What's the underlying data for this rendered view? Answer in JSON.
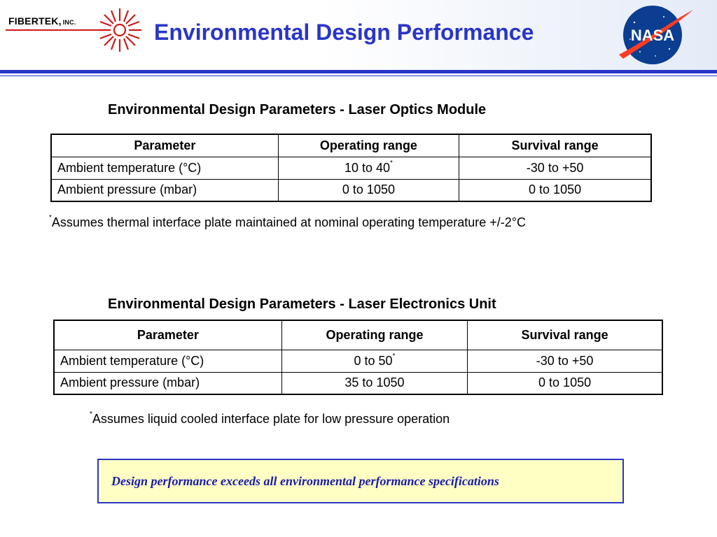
{
  "header": {
    "company": "FIBERTEK,",
    "company_suffix": "INC.",
    "title": "Environmental Design Performance",
    "logo_right": "NASA"
  },
  "optics": {
    "title": "Environmental Design Parameters - Laser Optics Module",
    "headers": [
      "Parameter",
      "Operating range",
      "Survival range"
    ],
    "rows": [
      {
        "parameter": "Ambient temperature (°C)",
        "operating": "10 to 40",
        "operating_mark": "*",
        "survival": "-30 to +50"
      },
      {
        "parameter": "Ambient pressure (mbar)",
        "operating": "0 to 1050",
        "operating_mark": "",
        "survival": "0 to 1050"
      }
    ],
    "note_mark": "*",
    "note": "Assumes thermal interface plate maintained at nominal operating temperature +/-2°C"
  },
  "electronics": {
    "title": "Environmental Design Parameters - Laser Electronics Unit",
    "headers": [
      "Parameter",
      "Operating range",
      "Survival range"
    ],
    "rows": [
      {
        "parameter": "Ambient temperature (°C)",
        "operating": "0 to 50",
        "operating_mark": "*",
        "survival": "-30 to +50"
      },
      {
        "parameter": "Ambient pressure (mbar)",
        "operating": "35 to 1050",
        "operating_mark": "",
        "survival": "0 to 1050"
      }
    ],
    "note_mark": "*",
    "note": "Assumes liquid cooled interface plate for low pressure operation"
  },
  "callout": {
    "text": "Design performance exceeds all environmental performance specifications"
  },
  "colors": {
    "title_blue": "#2a35c8",
    "logo_red": "#d01818",
    "callout_fill": "#ffffc4",
    "nasa_blue": "#0b3d91"
  }
}
